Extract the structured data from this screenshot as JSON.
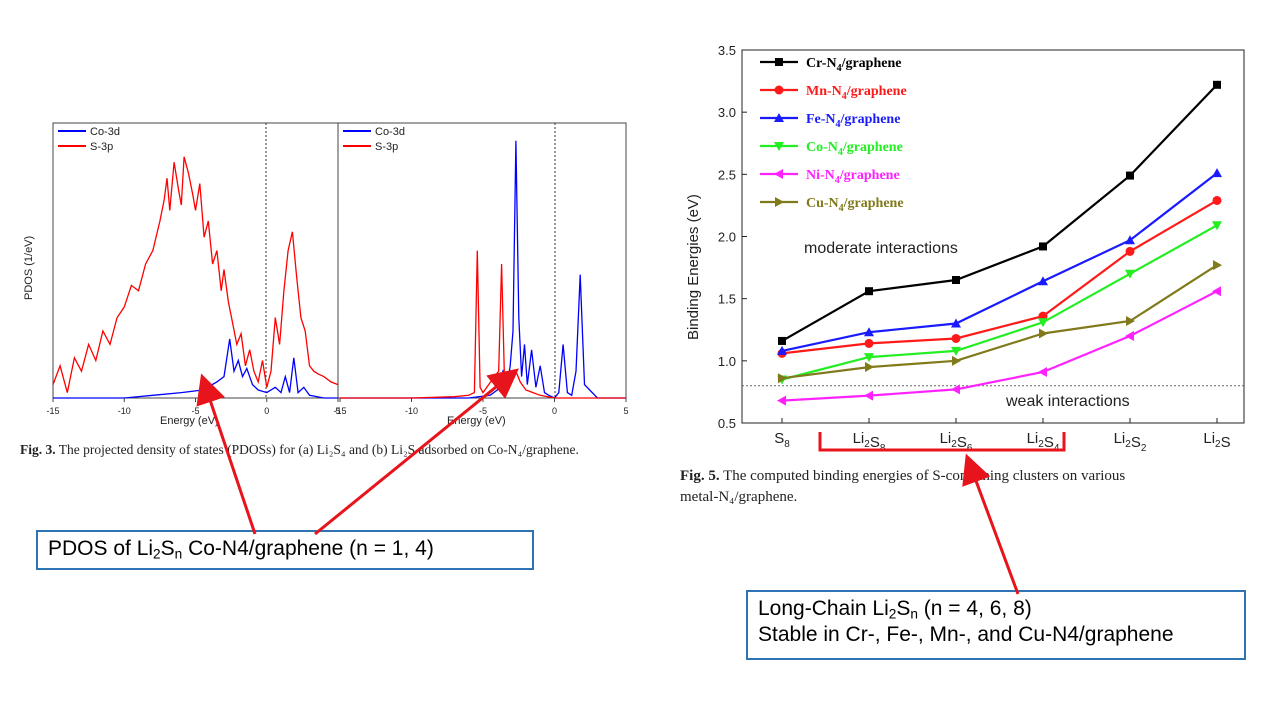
{
  "chart_data": [
    {
      "type": "line",
      "panel": "a",
      "ylabel": "PDOS (1/eV)",
      "xlabel": "Energy (eV)",
      "xlim": [
        -15,
        5
      ],
      "xticks": [
        "-15",
        "-10",
        "-5",
        "0",
        "5"
      ],
      "legend": {
        "placement": "top-left"
      },
      "series": [
        {
          "name": "Co-3d",
          "color": "#0000ff",
          "x": [
            -15,
            -12,
            -10,
            -8,
            -6,
            -4.5,
            -3.5,
            -3,
            -2.6,
            -2.3,
            -2.0,
            -1.7,
            -1.4,
            -1.0,
            -0.6,
            0,
            0.6,
            1.0,
            1.3,
            1.6,
            1.9,
            2.2,
            2.6,
            3,
            4,
            5
          ],
          "y": [
            0,
            0,
            0,
            0.01,
            0.02,
            0.03,
            0.06,
            0.08,
            0.22,
            0.1,
            0.14,
            0.08,
            0.11,
            0.05,
            0.03,
            0.02,
            0.04,
            0.02,
            0.08,
            0.02,
            0.15,
            0.02,
            0.04,
            0.01,
            0,
            0
          ]
        },
        {
          "name": "S-3p",
          "color": "#ff0000",
          "x": [
            -15,
            -14.5,
            -14,
            -13.5,
            -13,
            -12.5,
            -12,
            -11.5,
            -11,
            -10.5,
            -10,
            -9.5,
            -9,
            -8.5,
            -8,
            -7.5,
            -7.2,
            -7,
            -6.8,
            -6.5,
            -6.2,
            -6,
            -5.8,
            -5.5,
            -5.2,
            -5,
            -4.7,
            -4.4,
            -4.1,
            -3.8,
            -3.5,
            -3.2,
            -3,
            -2.7,
            -2.4,
            -2.1,
            -1.8,
            -1.5,
            -1.2,
            -0.9,
            -0.6,
            -0.3,
            0,
            0.3,
            0.6,
            0.9,
            1.2,
            1.5,
            1.8,
            2.1,
            2.4,
            2.7,
            3.0,
            3.3,
            3.6,
            4.0,
            4.5,
            5.0
          ],
          "y": [
            0.05,
            0.12,
            0.02,
            0.15,
            0.1,
            0.2,
            0.14,
            0.25,
            0.2,
            0.3,
            0.34,
            0.42,
            0.4,
            0.5,
            0.55,
            0.66,
            0.74,
            0.82,
            0.7,
            0.88,
            0.78,
            0.72,
            0.9,
            0.84,
            0.76,
            0.7,
            0.8,
            0.6,
            0.66,
            0.5,
            0.55,
            0.4,
            0.48,
            0.36,
            0.28,
            0.2,
            0.24,
            0.12,
            0.18,
            0.1,
            0.06,
            0.14,
            0.04,
            0.1,
            0.3,
            0.2,
            0.4,
            0.55,
            0.62,
            0.45,
            0.3,
            0.25,
            0.12,
            0.1,
            0.09,
            0.08,
            0.06,
            0.05
          ]
        }
      ]
    },
    {
      "type": "line",
      "panel": "b",
      "xlabel": "Energy (eV)",
      "xlim": [
        -15,
        5
      ],
      "xticks": [
        "-15",
        "-10",
        "-5",
        "0",
        "5"
      ],
      "legend": {
        "placement": "top-left"
      },
      "series": [
        {
          "name": "Co-3d",
          "color": "#0000ff",
          "x": [
            -15,
            -10,
            -6,
            -4.5,
            -4.0,
            -3.6,
            -3.3,
            -3.1,
            -2.9,
            -2.7,
            -2.5,
            -2.3,
            -2.1,
            -1.9,
            -1.6,
            -1.3,
            -1.0,
            -0.7,
            -0.4,
            0,
            0.3,
            0.6,
            0.9,
            1.2,
            1.5,
            1.8,
            2.1,
            3,
            5
          ],
          "y": [
            0,
            0,
            0,
            0.01,
            0.03,
            0.1,
            0.05,
            0.12,
            0.25,
            0.96,
            0.3,
            0.08,
            0.2,
            0.05,
            0.18,
            0.04,
            0.12,
            0.02,
            0.01,
            0,
            0.02,
            0.2,
            0.02,
            0.01,
            0.1,
            0.46,
            0.05,
            0,
            0
          ]
        },
        {
          "name": "S-3p",
          "color": "#ff0000",
          "x": [
            -15,
            -10,
            -7,
            -6,
            -5.6,
            -5.4,
            -5.2,
            -5.0,
            -4.6,
            -4.2,
            -3.9,
            -3.7,
            -3.5,
            -3.3,
            -3.0,
            -2.7,
            -2.4,
            -2.0,
            -1.5,
            -1.0,
            0,
            2,
            5
          ],
          "y": [
            0,
            0,
            0.005,
            0.01,
            0.02,
            0.55,
            0.04,
            0.02,
            0.05,
            0.08,
            0.1,
            0.5,
            0.08,
            0.06,
            0.07,
            0.1,
            0.06,
            0.03,
            0.02,
            0.01,
            0,
            0,
            0
          ]
        }
      ]
    },
    {
      "type": "line",
      "panel": "binding",
      "ylabel": "Binding Energies (eV)",
      "ylim": [
        0.5,
        3.5
      ],
      "yticks": [
        "0.5",
        "1.0",
        "1.5",
        "2.0",
        "2.5",
        "3.0",
        "3.5"
      ],
      "categories": [
        "S8",
        "Li2S8",
        "Li2S6",
        "Li2S4",
        "Li2S2",
        "Li2S"
      ],
      "legend": {
        "placement": "top-left"
      },
      "reference_line": 0.8,
      "series": [
        {
          "name": "Cr-N4/graphene",
          "color": "#000000",
          "marker": "square",
          "values": [
            1.16,
            1.56,
            1.65,
            1.92,
            2.49,
            3.22
          ]
        },
        {
          "name": "Mn-N4/graphene",
          "color": "#ff1a1a",
          "marker": "circle",
          "values": [
            1.06,
            1.14,
            1.18,
            1.36,
            1.88,
            2.29
          ]
        },
        {
          "name": "Fe-N4/graphene",
          "color": "#1a1aff",
          "marker": "triangle-up",
          "values": [
            1.08,
            1.23,
            1.3,
            1.64,
            1.97,
            2.51
          ]
        },
        {
          "name": "Co-N4/graphene",
          "color": "#22ee22",
          "marker": "triangle-down",
          "values": [
            0.85,
            1.03,
            1.08,
            1.31,
            1.7,
            2.09
          ]
        },
        {
          "name": "Ni-N4/graphene",
          "color": "#ff22ff",
          "marker": "triangle-left",
          "values": [
            0.68,
            0.72,
            0.77,
            0.91,
            1.2,
            1.56
          ]
        },
        {
          "name": "Cu-N4/graphene",
          "color": "#807a1a",
          "marker": "triangle-right",
          "values": [
            0.86,
            0.95,
            1.0,
            1.22,
            1.32,
            1.77
          ]
        }
      ],
      "annotations": [
        "moderate interactions",
        "weak interactions"
      ]
    }
  ],
  "text": {
    "fig3_label": "Fig. 3.",
    "fig3_caption": "The projected density of states (PDOSs) for (a) Li₂S₄ and (b) Li₂S adsorbed on Co-N₄/graphene.",
    "fig5_label": "Fig. 5.",
    "fig5_caption_line1": "The computed binding energies of S-containing clusters on various",
    "fig5_caption_line2": "metal-N₄/graphene.",
    "moderate": "moderate interactions",
    "weak": "weak interactions",
    "xlabel_a": "Energy (eV)",
    "xlabel_b": "Energy (eV)",
    "ylabel_a": "PDOS (1/eV)",
    "ylabel_binding": "Binding Energies (eV)",
    "legend_a1": "Co-3d",
    "legend_a2": "S-3p",
    "legend_b1": "Co-3d",
    "legend_b2": "S-3p",
    "cat_S8": "S8",
    "callout1": "PDOS of Li2Sn Co-N4/graphene (n = 1, 4)",
    "callout2_line1": "Long-Chain Li2Sn (n = 4, 6, 8)",
    "callout2_line2": "Stable in Cr-, Fe-, Mn-, and Cu-N4/graphene"
  },
  "colors": {
    "callout_border": "#2e74b5",
    "arrow": "#e8141c",
    "bracket": "#e8141c"
  }
}
